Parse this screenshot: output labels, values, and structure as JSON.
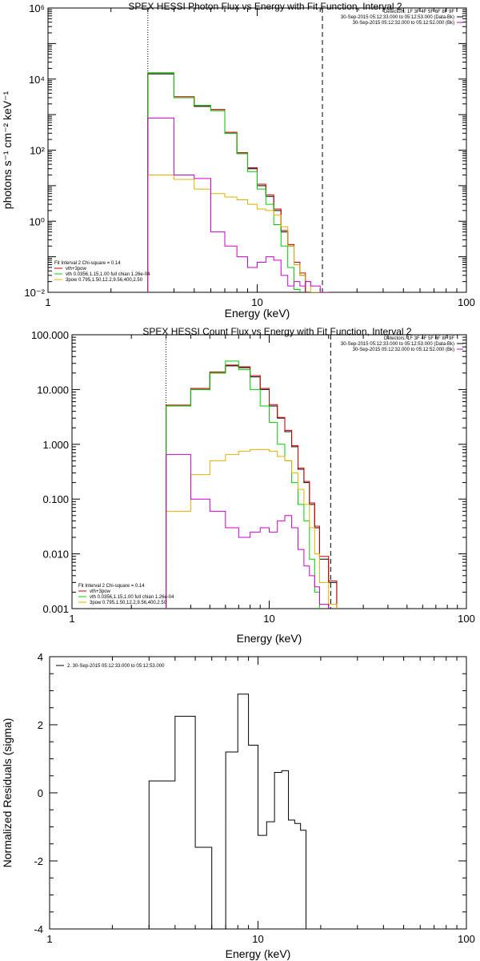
{
  "chart_data": [
    {
      "type": "line",
      "step": true,
      "title": "SPEX HESSI Photon Flux vs Energy with Fit Function, Interval 2",
      "xlabel": "Energy (keV)",
      "ylabel": "photons s⁻¹ cm⁻² keV⁻¹",
      "xlog": true,
      "ylog": true,
      "xlim": [
        1,
        100
      ],
      "ylim": [
        0.01,
        1000000
      ],
      "x_ticks": [
        "1",
        "10",
        "100"
      ],
      "y_ticks": [
        "10⁻²",
        "10⁰",
        "10²",
        "10⁴",
        "10⁶"
      ],
      "vlines": [
        {
          "x": 3,
          "style": "dotted"
        },
        {
          "x": 20.5,
          "style": "dashed"
        }
      ],
      "info_lines": [
        "Detectors: 1F 3F 4F 5F 6F 8F 9F",
        "30-Sep-2015 05:12:33.000 to 05:12:53.000 (Data-Bk)",
        "30-Sep-2015 05:12:32.000 to 05:12:52.000 (Bk)"
      ],
      "legend_header": "Fit Interval 2   Chi-square = 0.14",
      "legend": [
        {
          "name": "vth+3pow",
          "color": "#cc0000"
        },
        {
          "name": "vth 0.0356,1.15,1.00   full chian 1.26e-04",
          "color": "#00cc00"
        },
        {
          "name": "3pow 0.795,1.50,12.2,9.56,400,2.50",
          "color": "#e0b000"
        }
      ],
      "edges": [
        3,
        3.5,
        4,
        5,
        6,
        7,
        8,
        9,
        10,
        11,
        12,
        13,
        14,
        15,
        16,
        17,
        18,
        20,
        22,
        24
      ],
      "series": [
        {
          "color": "#000000",
          "values": [
            14000,
            14000,
            3000,
            1700,
            1300,
            300,
            80,
            30,
            10,
            5,
            2,
            0.5,
            0.2,
            0.06,
            0.03
          ]
        },
        {
          "color": "#cc0000",
          "values": [
            15000,
            15000,
            3200,
            1800,
            1400,
            320,
            85,
            32,
            11,
            5.5,
            2.2,
            0.55,
            0.22,
            0.07,
            0.035
          ]
        },
        {
          "color": "#00cc00",
          "values": [
            15000,
            15000,
            3000,
            1800,
            1300,
            300,
            80,
            25,
            8,
            3,
            0.8,
            0.2,
            0.05,
            0.012,
            0.005
          ]
        },
        {
          "color": "#e0b000",
          "values": [
            20,
            20,
            15,
            8,
            6,
            4.8,
            4,
            3,
            2.2,
            2,
            1.5,
            0.7,
            0.2,
            0.06,
            0.03,
            0.02,
            0.01
          ]
        },
        {
          "color": "#cc00cc",
          "values": [
            800,
            800,
            20,
            16,
            0.5,
            0.2,
            0.1,
            0.05,
            0.07,
            0.1,
            0.08,
            0.03,
            0.015,
            0.02,
            0.015,
            0.02,
            0.015,
            0.01
          ]
        }
      ]
    },
    {
      "type": "line",
      "step": true,
      "title": "SPEX HESSI Count Flux vs Energy with Fit Function, Interval 2",
      "xlabel": "Energy (keV)",
      "ylabel": "",
      "xlog": true,
      "ylog": true,
      "xlim": [
        1,
        100
      ],
      "ylim": [
        0.001,
        100
      ],
      "x_ticks": [
        "1",
        "10",
        "100"
      ],
      "y_ticks": [
        "0.001",
        "0.010",
        "0.100",
        "1.000",
        "10.000",
        "100.000"
      ],
      "vlines": [
        {
          "x": 3,
          "style": "dotted"
        },
        {
          "x": 20.5,
          "style": "dashed"
        }
      ],
      "info_lines": [
        "Detectors: 1F 3F 4F 5F 6F 8F 9F",
        "30-Sep-2015 05:12:33.000 to 05:12:53.000 (Data-Bk)",
        "30-Sep-2015 05:12:32.000 to 05:12:52.000 (Bk)"
      ],
      "legend_header": "Fit Interval 2   Chi-square = 0.14",
      "legend": [
        {
          "name": "vth+3pow",
          "color": "#cc0000"
        },
        {
          "name": "vth 0.0356,1.15,1.00   full chian 1.26e-04",
          "color": "#00cc00"
        },
        {
          "name": "3pow 0.795,1.50,12.2,9.56,400,2.50",
          "color": "#e0b000"
        }
      ],
      "edges": [
        3,
        4,
        5,
        6,
        7,
        8,
        9,
        10,
        11,
        12,
        13,
        14,
        15,
        16,
        17,
        18,
        20,
        22,
        24,
        26
      ],
      "series": [
        {
          "color": "#000000",
          "values": [
            5,
            10,
            20,
            27,
            25,
            17,
            10,
            5,
            3,
            1.7,
            0.9,
            0.35,
            0.2,
            0.08,
            0.03,
            0.008,
            0.003
          ]
        },
        {
          "color": "#cc0000",
          "values": [
            5.2,
            10.5,
            21,
            28,
            26,
            18,
            10.5,
            5.3,
            3.1,
            1.8,
            0.95,
            0.37,
            0.21,
            0.085,
            0.032,
            0.009,
            0.0032
          ]
        },
        {
          "color": "#00cc00",
          "values": [
            5,
            10,
            20,
            33,
            23,
            10,
            5,
            2.5,
            1,
            0.5,
            0.2,
            0.08,
            0.04,
            0.008,
            0.002,
            0.0005
          ]
        },
        {
          "color": "#e0b000",
          "values": [
            0.06,
            0.28,
            0.5,
            0.65,
            0.75,
            0.8,
            0.8,
            0.75,
            0.6,
            0.5,
            0.3,
            0.15,
            0.08,
            0.03,
            0.01,
            0.003,
            0.0012
          ]
        },
        {
          "color": "#cc00cc",
          "values": [
            0.65,
            0.1,
            0.06,
            0.03,
            0.02,
            0.025,
            0.03,
            0.025,
            0.04,
            0.05,
            0.03,
            0.012,
            0.006,
            0.004,
            0.0025,
            0.0012
          ]
        }
      ]
    },
    {
      "type": "line",
      "step": true,
      "title": "",
      "xlabel": "Energy (keV)",
      "ylabel": "Normalized Residuals (sigma)",
      "xlog": true,
      "ylog": false,
      "xlim": [
        1,
        100
      ],
      "ylim": [
        -4,
        4
      ],
      "x_ticks": [
        "1",
        "10",
        "100"
      ],
      "y_ticks": [
        "-4",
        "-2",
        "0",
        "2",
        "4"
      ],
      "legend": [
        {
          "name": "2. 30-Sep-2015 05:12:33.000 to 05:12:53.000",
          "color": "#000000"
        }
      ],
      "edges": [
        3,
        4,
        5,
        6,
        7,
        8,
        9,
        10,
        11,
        12,
        13,
        14,
        15,
        16,
        17,
        18,
        20
      ],
      "series": [
        {
          "color": "#000000",
          "values": [
            0.35,
            2.25,
            -1.6,
            -4.0,
            1.2,
            2.9,
            1.4,
            -1.25,
            -0.85,
            0.6,
            0.65,
            -0.8,
            -0.9,
            -1.1
          ]
        }
      ]
    }
  ]
}
